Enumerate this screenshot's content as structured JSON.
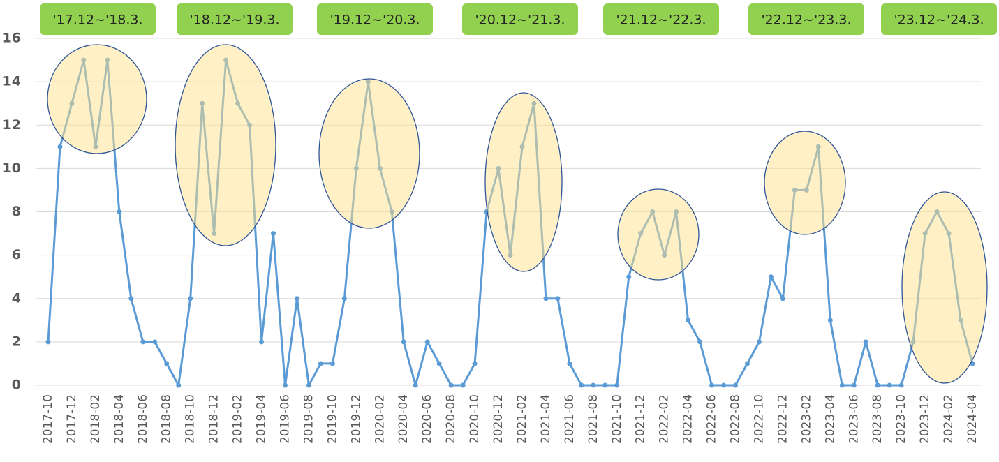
{
  "chart_data": {
    "type": "line",
    "categories": [
      "2017-10",
      null,
      "2017-12",
      null,
      "2018-02",
      null,
      "2018-04",
      null,
      "2018-06",
      null,
      "2018-08",
      null,
      "2018-10",
      null,
      "2018-12",
      null,
      "2019-02",
      null,
      "2019-04",
      null,
      "2019-06",
      null,
      "2019-08",
      null,
      "2019-10",
      null,
      "2019-12",
      null,
      "2020-02",
      null,
      "2020-04",
      null,
      "2020-06",
      null,
      "2020-08",
      null,
      "2020-10",
      null,
      "2020-12",
      null,
      "2021-02",
      null,
      "2021-04",
      null,
      "2021-06",
      null,
      "2021-08",
      null,
      "2021-10",
      null,
      "2021-12",
      null,
      "2022-02",
      null,
      "2022-04",
      null,
      "2022-06",
      null,
      "2022-08",
      null,
      "2022-10",
      null,
      "2022-12",
      null,
      "2023-02",
      null,
      "2023-04",
      null,
      "2023-06",
      null,
      "2023-08",
      null,
      "2023-10",
      null,
      "2023-12",
      null,
      "2024-02",
      null,
      "2024-04"
    ],
    "series": [
      {
        "color": "#5b9bd5",
        "values": [
          2,
          11,
          13,
          15,
          11,
          15,
          8,
          4,
          2,
          2,
          1,
          0,
          4,
          13,
          7,
          15,
          13,
          12,
          2,
          7,
          0,
          4,
          0,
          1,
          1,
          4,
          10,
          14,
          10,
          8,
          2,
          0,
          2,
          1,
          0,
          0,
          1,
          8,
          10,
          6,
          11,
          13,
          4,
          4,
          1,
          0,
          0,
          0,
          0,
          5,
          7,
          8,
          6,
          8,
          3,
          2,
          0,
          0,
          0,
          1,
          2,
          5,
          4,
          9,
          9,
          11,
          3,
          0,
          0,
          2,
          0,
          0,
          0,
          2,
          7,
          8,
          7,
          3,
          1
        ]
      }
    ],
    "ylim": [
      0,
      16
    ],
    "yticks": [
      0,
      2,
      4,
      6,
      8,
      10,
      12,
      14,
      16
    ],
    "grid": true,
    "annotations": [
      "'17.12~'18.3.",
      "'18.12~'19.3.",
      "'19.12~'20.3.",
      "'20.12~'21.3.",
      "'21.12~'22.3.",
      "'22.12~'23.3.",
      "'23.12~'24.3."
    ]
  }
}
